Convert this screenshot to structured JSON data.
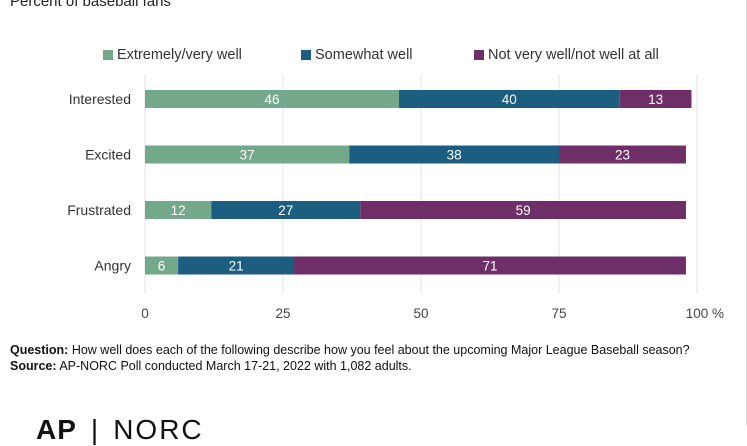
{
  "chart_data": {
    "type": "bar",
    "orientation": "horizontal",
    "stacked": true,
    "subtitle": "Percent of baseball fans",
    "categories": [
      "Interested",
      "Excited",
      "Frustrated",
      "Angry"
    ],
    "series": [
      {
        "name": "Extremely/very well",
        "values": [
          46,
          37,
          12,
          6
        ],
        "color": "#73a98a"
      },
      {
        "name": "Somewhat well",
        "values": [
          40,
          38,
          27,
          21
        ],
        "color": "#1b5e80"
      },
      {
        "name": "Not very well/not well at all",
        "values": [
          13,
          23,
          59,
          71
        ],
        "color": "#6e2f69"
      }
    ],
    "xlim": [
      0,
      100
    ],
    "xticks": [
      0,
      25,
      50,
      75,
      100
    ],
    "x_unit": "%",
    "grid": true,
    "legend_position": "top"
  },
  "notes": {
    "question_label": "Question:",
    "question_text": "How well does each of the following describe how you feel about the upcoming Major League Baseball season?",
    "source_label": "Source:",
    "source_text": "AP-NORC Poll conducted March 17-21, 2022 with 1,082 adults."
  },
  "logo": {
    "left": "AP",
    "separator": "|",
    "right": "NORC"
  }
}
